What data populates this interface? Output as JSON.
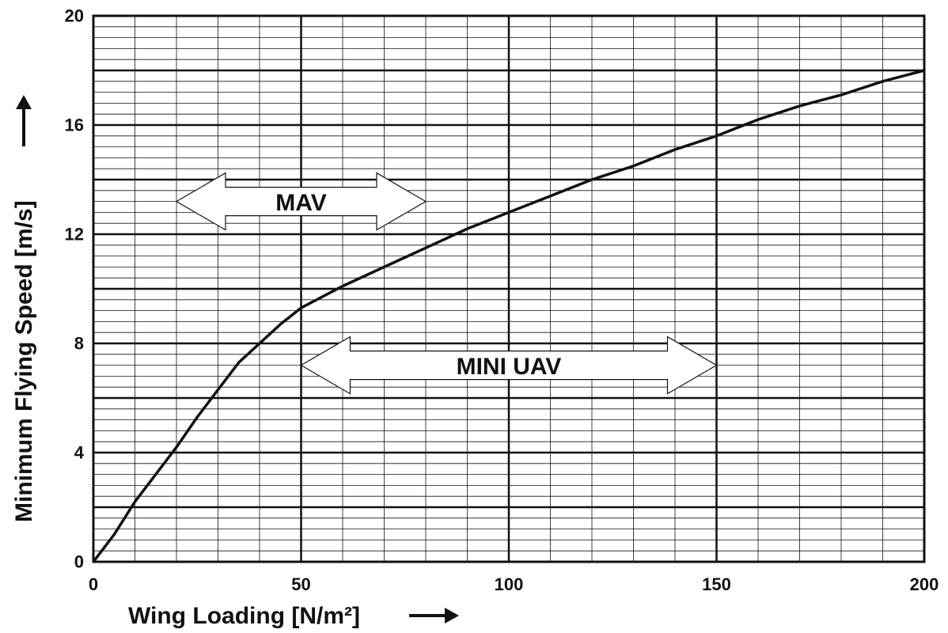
{
  "chart_data": {
    "type": "line",
    "title": "",
    "xlabel": "Wing Loading [N/m²]",
    "ylabel": "Minimum Flying Speed [m/s]",
    "xlim": [
      0,
      200
    ],
    "ylim": [
      0,
      20
    ],
    "x_ticks": [
      0,
      50,
      100,
      150,
      200
    ],
    "x_tick_labels": [
      "0",
      "50",
      "100",
      "150",
      "200"
    ],
    "y_ticks": [
      0,
      4,
      8,
      12,
      16,
      20
    ],
    "y_tick_labels": [
      "0",
      "4",
      "8",
      "12",
      "16",
      "20"
    ],
    "grid": true,
    "legend": "none",
    "series": [
      {
        "x": [
          0,
          5,
          10,
          15,
          20,
          25,
          30,
          35,
          40,
          45,
          50,
          60,
          70,
          80,
          90,
          100,
          110,
          120,
          130,
          140,
          150,
          160,
          170,
          180,
          190,
          200
        ],
        "y": [
          0,
          1.0,
          2.2,
          3.2,
          4.2,
          5.3,
          6.3,
          7.3,
          8.0,
          8.7,
          9.3,
          10.1,
          10.8,
          11.5,
          12.2,
          12.8,
          13.4,
          14.0,
          14.5,
          15.1,
          15.6,
          16.2,
          16.7,
          17.1,
          17.6,
          18.0
        ]
      }
    ],
    "annotations": [
      {
        "text": "MAV",
        "x_range": [
          20,
          80
        ],
        "y": 13.2,
        "type": "double-arrow"
      },
      {
        "text": "MINI UAV",
        "x_range": [
          50,
          150
        ],
        "y": 7.2,
        "type": "double-arrow"
      }
    ]
  }
}
